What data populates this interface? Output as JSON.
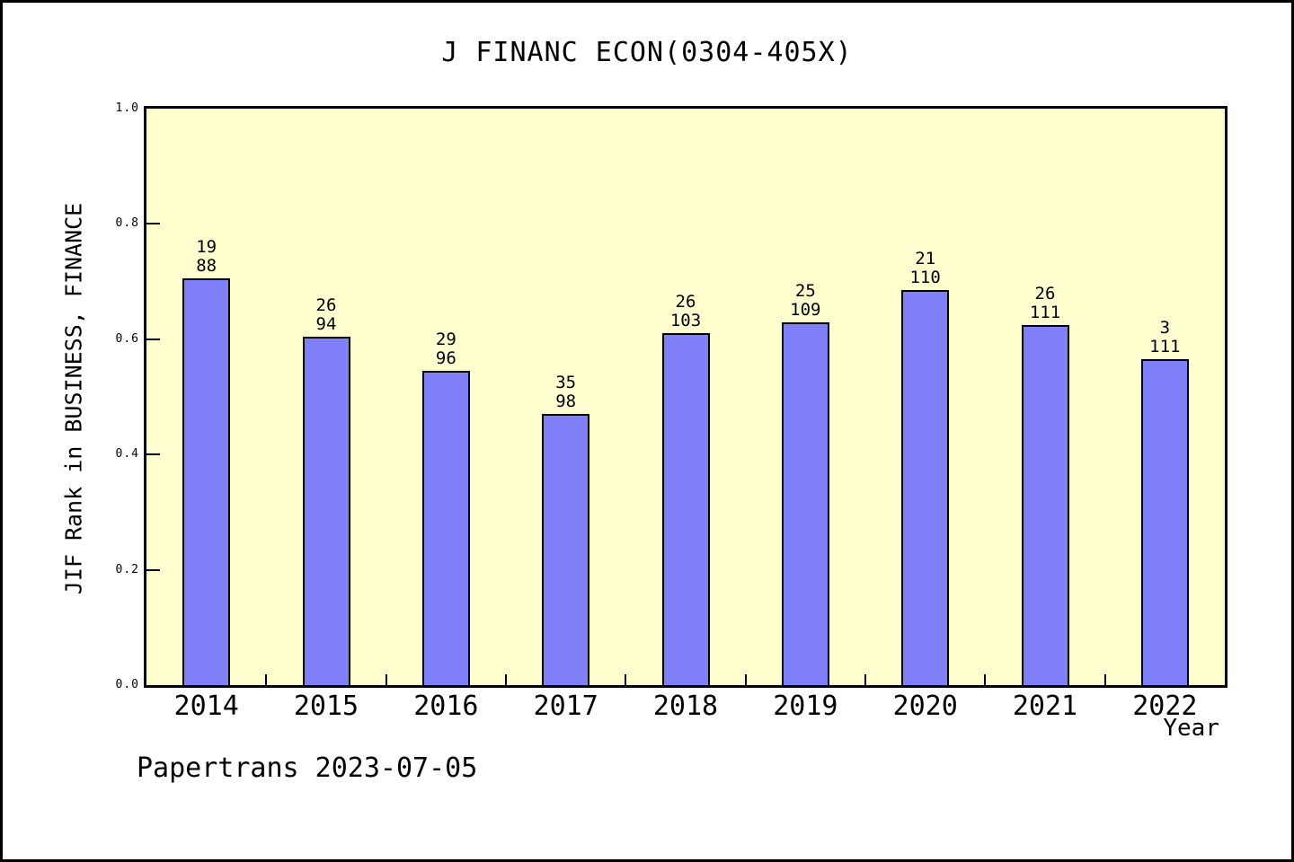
{
  "title": "J FINANC ECON(0304-405X)",
  "footer": "Papertrans 2023-07-05",
  "colors": {
    "bar_fill": "#7F7FF8",
    "bar_border": "#000000",
    "plot_background": "#FFFFD0",
    "axis_color": "#000000",
    "page_background": "#FFFFFF"
  },
  "chart_data": {
    "type": "bar",
    "title": "J FINANC ECON(0304-405X)",
    "xlabel": "Year",
    "ylabel": "JIF Rank in BUSINESS, FINANCE",
    "categories": [
      "2014",
      "2015",
      "2016",
      "2017",
      "2018",
      "2019",
      "2020",
      "2021",
      "2022"
    ],
    "values": [
      0.705,
      0.605,
      0.545,
      0.47,
      0.61,
      0.63,
      0.685,
      0.625,
      0.565
    ],
    "bar_labels": [
      [
        "19",
        "88"
      ],
      [
        "26",
        "94"
      ],
      [
        "29",
        "96"
      ],
      [
        "35",
        "98"
      ],
      [
        "26",
        "103"
      ],
      [
        "25",
        "109"
      ],
      [
        "21",
        "110"
      ],
      [
        "26",
        "111"
      ],
      [
        "3",
        "111"
      ]
    ],
    "ylim": [
      0.0,
      1.0
    ],
    "ytick_labels": [
      "0.0",
      "0.2",
      "0.4",
      "0.6",
      "0.8",
      "1.0"
    ],
    "ytick_values": [
      0.0,
      0.2,
      0.4,
      0.6,
      0.8,
      1.0
    ],
    "grid": false,
    "legend_position": "none"
  }
}
